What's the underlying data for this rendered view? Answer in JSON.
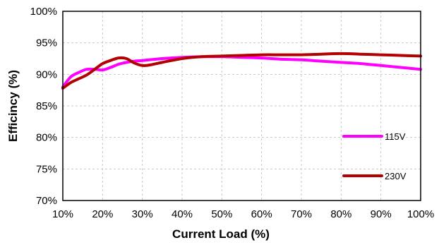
{
  "chart_data": {
    "type": "line",
    "xlabel": "Current Load (%)",
    "ylabel": "Efficincy (%)",
    "xlim": [
      10,
      100
    ],
    "ylim": [
      70,
      100
    ],
    "x_ticks": [
      10,
      20,
      30,
      40,
      50,
      60,
      70,
      80,
      90,
      100
    ],
    "x_tick_labels": [
      "10%",
      "20%",
      "30%",
      "40%",
      "50%",
      "60%",
      "70%",
      "80%",
      "90%",
      "100%"
    ],
    "y_ticks": [
      70,
      75,
      80,
      85,
      90,
      95,
      100
    ],
    "y_tick_labels": [
      "70%",
      "75%",
      "80%",
      "85%",
      "90%",
      "95%",
      "100%"
    ],
    "grid": true,
    "legend_placement": "right",
    "series": [
      {
        "name": "115V",
        "color": "#ff00ff",
        "x": [
          10,
          12,
          14,
          16,
          18,
          20,
          22,
          24,
          26,
          28,
          30,
          35,
          40,
          45,
          50,
          55,
          60,
          65,
          70,
          75,
          80,
          85,
          90,
          95,
          100
        ],
        "values": [
          88.0,
          89.6,
          90.3,
          90.8,
          90.8,
          90.7,
          91.1,
          91.6,
          91.9,
          92.1,
          92.2,
          92.5,
          92.7,
          92.8,
          92.8,
          92.7,
          92.6,
          92.4,
          92.3,
          92.1,
          91.9,
          91.7,
          91.4,
          91.1,
          90.8
        ]
      },
      {
        "name": "230V",
        "color": "#b30000",
        "x": [
          10,
          12,
          14,
          16,
          18,
          20,
          22,
          24,
          26,
          28,
          30,
          32,
          35,
          40,
          45,
          50,
          55,
          60,
          65,
          70,
          75,
          80,
          85,
          90,
          95,
          100
        ],
        "values": [
          87.8,
          88.7,
          89.3,
          89.9,
          90.8,
          91.7,
          92.2,
          92.6,
          92.5,
          91.8,
          91.4,
          91.5,
          91.9,
          92.5,
          92.8,
          92.9,
          93.0,
          93.1,
          93.1,
          93.1,
          93.2,
          93.3,
          93.2,
          93.1,
          93.0,
          92.9
        ]
      }
    ]
  }
}
